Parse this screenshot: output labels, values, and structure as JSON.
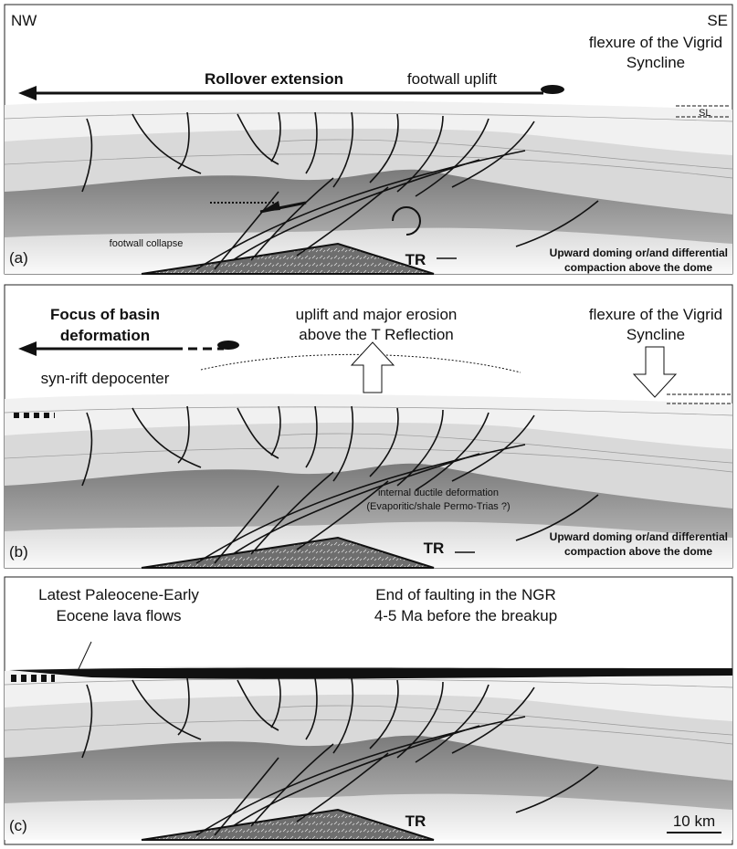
{
  "panels": [
    {
      "texts": [
        "NW",
        "SE",
        "flexure of the Vigrid",
        "Syncline",
        "Rollover extension",
        "footwall uplift",
        "SL",
        "footwall collapse",
        "TR",
        "Upward doming or/and differential",
        "compaction above the dome",
        "(a)"
      ]
    },
    {
      "texts": [
        "Focus of basin",
        "deformation",
        "uplift and major erosion",
        "above the T Reflection",
        "flexure of the Vigrid",
        "Syncline",
        "syn-rift depocenter",
        "internal ductile deformation",
        "(Evaporitic/shale Permo-Trias ?)",
        "TR",
        "Upward doming or/and differential",
        "compaction above the dome",
        "(b)"
      ]
    },
    {
      "texts": [
        "Latest Paleocene-Early",
        "Eocene lava flows",
        "End of faulting in the NGR",
        "4-5 Ma before the breakup",
        "TR",
        "10 km",
        "(c)"
      ]
    }
  ]
}
